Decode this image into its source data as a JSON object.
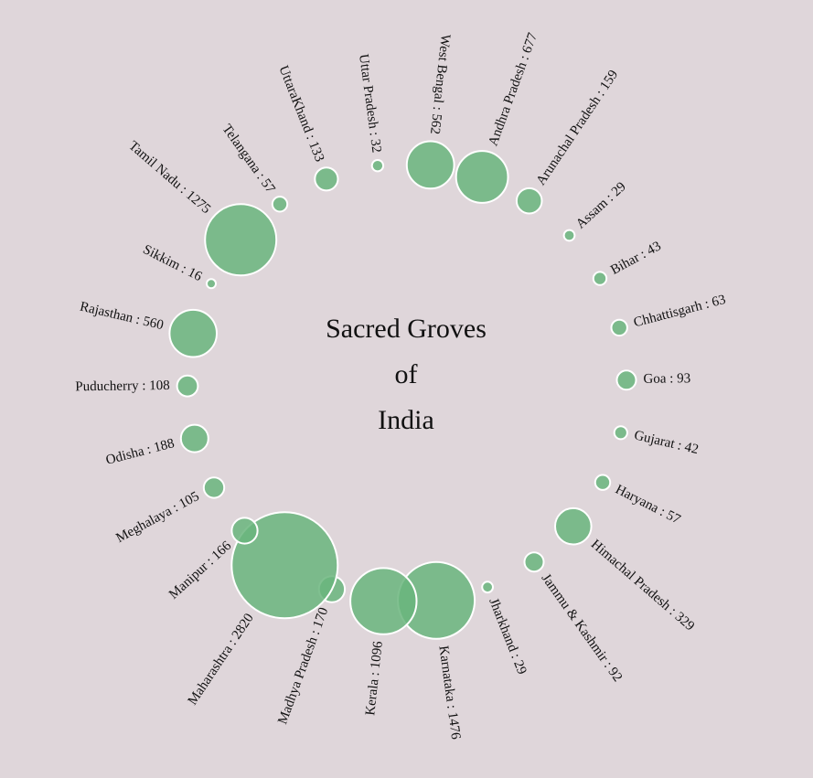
{
  "title_lines": [
    "Sacred Groves",
    "of",
    "India"
  ],
  "colors": {
    "background": "#dfd6da",
    "bubble": "#6ab57d",
    "bubble_stroke": "#ffffff"
  },
  "chart_data": {
    "type": "bubble",
    "title": "Sacred Groves of India",
    "layout": "radial",
    "series": [
      {
        "label": "Andhra Pradesh : 677",
        "state": "Andhra Pradesh",
        "value": 677
      },
      {
        "label": "Arunachal Pradesh : 159",
        "state": "Arunachal Pradesh",
        "value": 159
      },
      {
        "label": "Assam : 29",
        "state": "Assam",
        "value": 29
      },
      {
        "label": "Bihar : 43",
        "state": "Bihar",
        "value": 43
      },
      {
        "label": "Chhattisgarh : 63",
        "state": "Chhattisgarh",
        "value": 63
      },
      {
        "label": "Goa : 93",
        "state": "Goa",
        "value": 93
      },
      {
        "label": "Gujarat : 42",
        "state": "Gujarat",
        "value": 42
      },
      {
        "label": "Haryana : 57",
        "state": "Haryana",
        "value": 57
      },
      {
        "label": "Himachal Pradesh : 329",
        "state": "Himachal Pradesh",
        "value": 329
      },
      {
        "label": "Jammu & Kashmir : 92",
        "state": "Jammu & Kashmir",
        "value": 92
      },
      {
        "label": "Jharkhand : 29",
        "state": "Jharkhand",
        "value": 29
      },
      {
        "label": "Karnataka : 1476",
        "state": "Karnataka",
        "value": 1476
      },
      {
        "label": "Kerala : 1096",
        "state": "Kerala",
        "value": 1096
      },
      {
        "label": "Madhya Pradesh : 170",
        "state": "Madhya Pradesh",
        "value": 170
      },
      {
        "label": "Maharashtra : 2820",
        "state": "Maharashtra",
        "value": 2820
      },
      {
        "label": "Manipur : 166",
        "state": "Manipur",
        "value": 166
      },
      {
        "label": "Meghalaya : 105",
        "state": "Meghalaya",
        "value": 105
      },
      {
        "label": "Odisha : 188",
        "state": "Odisha",
        "value": 188
      },
      {
        "label": "Puducherry : 108",
        "state": "Puducherry",
        "value": 108
      },
      {
        "label": "Rajasthan : 560",
        "state": "Rajasthan",
        "value": 560
      },
      {
        "label": "Sikkim : 16",
        "state": "Sikkim",
        "value": 16
      },
      {
        "label": "Tamil Nadu : 1275",
        "state": "Tamil Nadu",
        "value": 1275
      },
      {
        "label": "Telangana : 57",
        "state": "Telangana",
        "value": 57
      },
      {
        "label": "UttaraKhand : 133",
        "state": "UttaraKhand",
        "value": 133
      },
      {
        "label": "Uttar Pradesh : 32",
        "state": "Uttar Pradesh",
        "value": 32
      },
      {
        "label": "West Bengal : 562",
        "state": "West Bengal",
        "value": 562
      }
    ]
  }
}
